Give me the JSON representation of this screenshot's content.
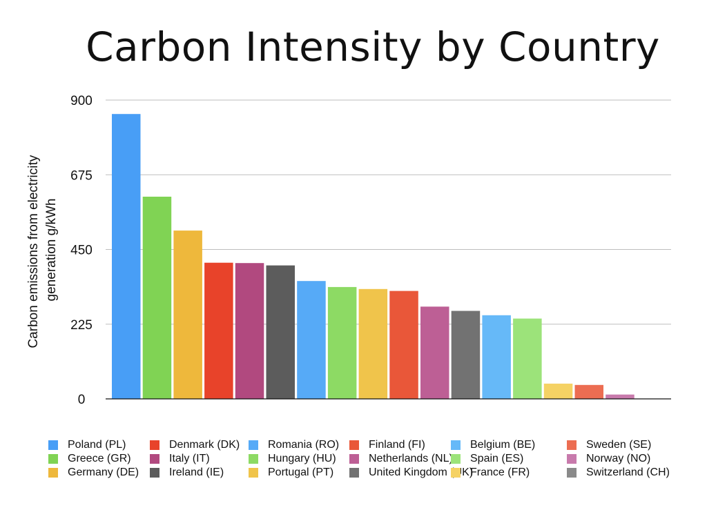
{
  "chart_data": {
    "type": "bar",
    "title": "Carbon Intensity by Country",
    "ylabel_lines": [
      "Carbon emissions from electricity",
      "generation g/kWh"
    ],
    "ylim": [
      0,
      900
    ],
    "yticks": [
      0,
      225,
      450,
      675,
      900
    ],
    "grid": true,
    "legend_position": "bottom",
    "categories": [
      "Poland (PL)",
      "Greece (GR)",
      "Germany (DE)",
      "Denmark (DK)",
      "Italy (IT)",
      "Ireland (IE)",
      "Romania (RO)",
      "Hungary (HU)",
      "Portugal (PT)",
      "Finland (FI)",
      "Netherlands (NL)",
      "United Kingdom (UK)",
      "Belgium (BE)",
      "Spain (ES)",
      "France (FR)",
      "Sweden (SE)",
      "Norway (NO)",
      "Switzerland (CH)"
    ],
    "values": [
      858,
      609,
      507,
      410,
      409,
      402,
      355,
      337,
      331,
      325,
      278,
      265,
      252,
      242,
      46,
      42,
      13,
      0
    ],
    "colors": [
      "#489ef6",
      "#80d354",
      "#eeb83c",
      "#e8432a",
      "#b1497f",
      "#5c5c5c",
      "#56aaf7",
      "#8dda64",
      "#f0c44b",
      "#e95739",
      "#bd5f95",
      "#727272",
      "#66b9f8",
      "#9ce37a",
      "#f5d264",
      "#ec6d52",
      "#c87aac",
      "#8a8a8a"
    ]
  }
}
